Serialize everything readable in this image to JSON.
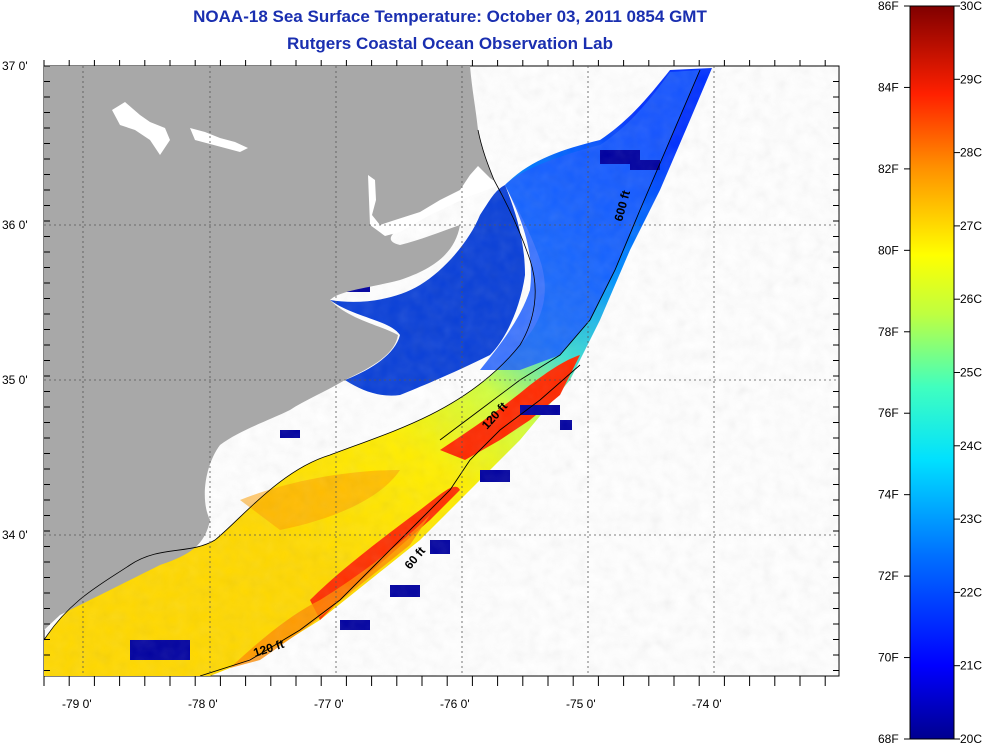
{
  "header": {
    "title": "NOAA-18 Sea Surface Temperature:  October 03, 2011 0854 GMT",
    "subtitle": "Rutgers Coastal Ocean Observation Lab"
  },
  "map": {
    "lat_labels": [
      "37 0'",
      "36 0'",
      "35 0'",
      "34 0'"
    ],
    "lon_labels": [
      "-79 0'",
      "-78 0'",
      "-77 0'",
      "-76 0'",
      "-75 0'",
      "-74 0'"
    ],
    "contours": [
      "600 ft",
      "120 ft",
      "60 ft",
      "120 ft"
    ],
    "colors": {
      "land": "#a8a8a8",
      "water_frame": "#ffffff",
      "title": "#1a2fb0"
    }
  },
  "colorbar": {
    "fahrenheit": [
      "86F",
      "84F",
      "82F",
      "80F",
      "78F",
      "76F",
      "74F",
      "72F",
      "70F",
      "68F"
    ],
    "celsius": [
      "30C",
      "29C",
      "28C",
      "27C",
      "26C",
      "25C",
      "24C",
      "23C",
      "22C",
      "21C",
      "20C"
    ],
    "scale": [
      "#00008f",
      "#0000ff",
      "#0080ff",
      "#00e0ff",
      "#40ffbf",
      "#bfff40",
      "#ffff00",
      "#ff9000",
      "#ff2000",
      "#b00000",
      "#800000"
    ]
  }
}
